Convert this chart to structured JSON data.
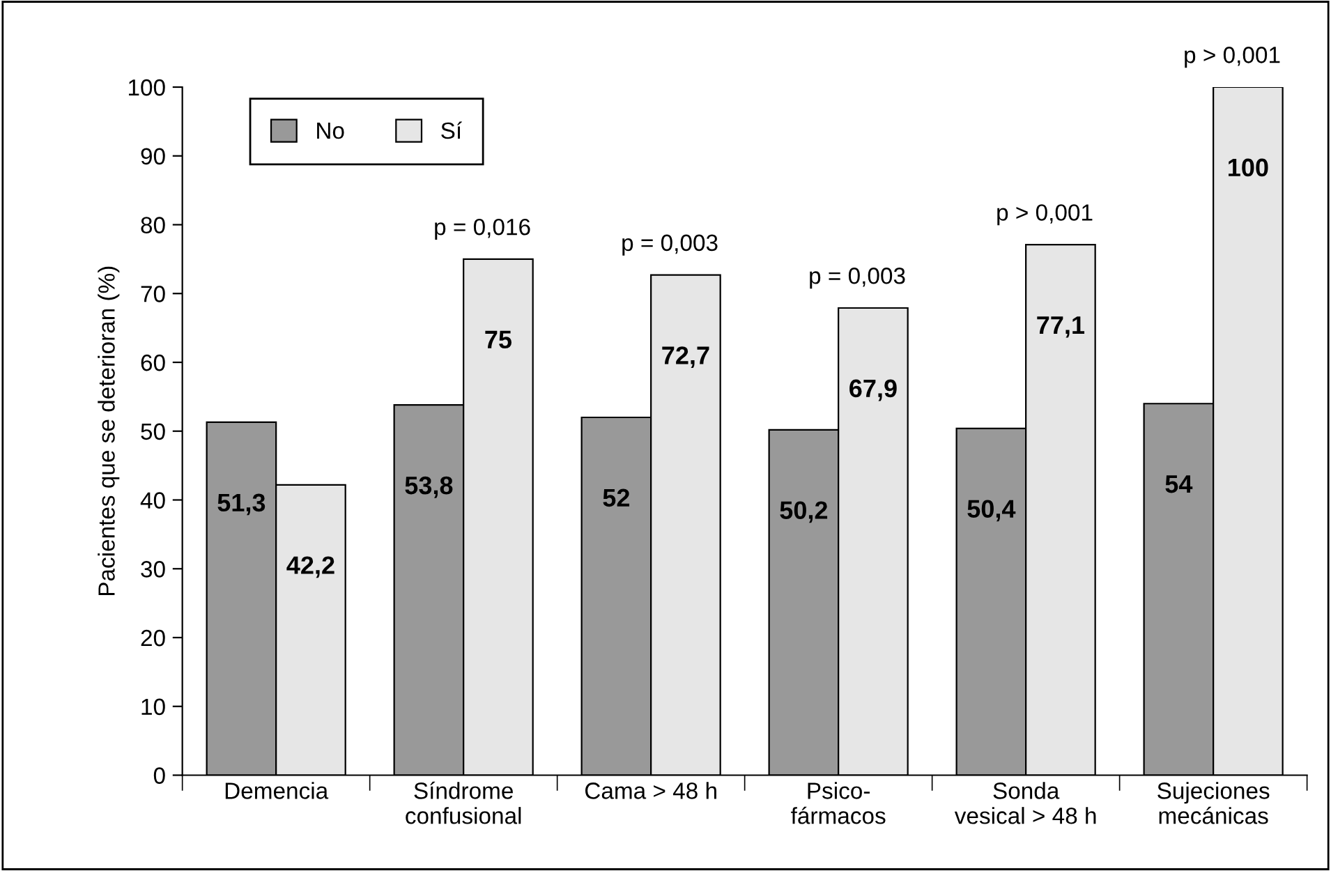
{
  "chart_data": {
    "type": "bar",
    "ylabel": "Pacientes que se deterioran (%)",
    "categories": [
      "Demencia",
      "Síndrome\nconfusional",
      "Cama > 48 h",
      "Psico-\nfármacos",
      "Sonda\nvesical > 48 h",
      "Sujeciones\nmecánicas"
    ],
    "series": [
      {
        "name": "No",
        "color": "#999999",
        "values": [
          51.3,
          53.8,
          52,
          50.2,
          50.4,
          54
        ],
        "value_labels": [
          "51,3",
          "53,8",
          "52",
          "50,2",
          "50,4",
          "54"
        ]
      },
      {
        "name": "Sí",
        "color": "#e6e6e6",
        "values": [
          42.2,
          75,
          72.7,
          67.9,
          77.1,
          100
        ],
        "value_labels": [
          "42,2",
          "75",
          "72,7",
          "67,9",
          "77,1",
          "100"
        ]
      }
    ],
    "ylim": [
      0,
      100
    ],
    "yticks": [
      0,
      10,
      20,
      30,
      40,
      50,
      60,
      70,
      80,
      90,
      100
    ],
    "grid": false,
    "legend": "top left",
    "annotations": [
      {
        "text": "p = 0,016",
        "x": "Síndrome\nconfusional",
        "y": 75
      },
      {
        "text": "p = 0,003",
        "x": "Cama > 48 h",
        "y": 72.7
      },
      {
        "text": "p = 0,003",
        "x": "Psico-\nfármacos",
        "y": 67.9
      },
      {
        "text": "p > 0,001",
        "x": "Sonda\nvesical > 48 h",
        "y": 77.1
      },
      {
        "text": "p > 0,001",
        "x": "Sujeciones\nmecánicas",
        "y": 100
      }
    ]
  }
}
